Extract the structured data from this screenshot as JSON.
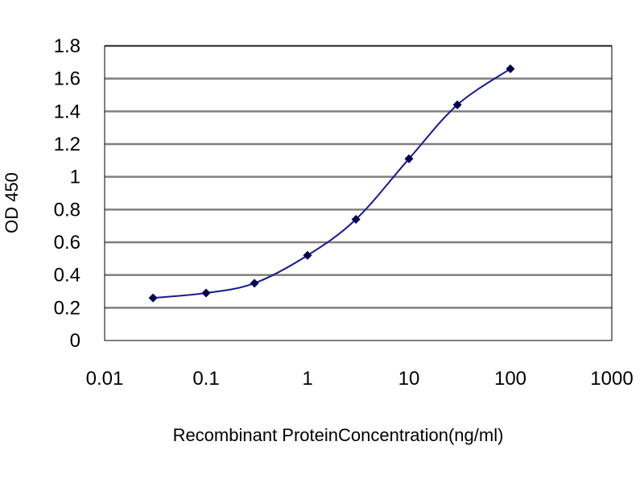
{
  "chart_data": {
    "type": "line",
    "title": "",
    "xlabel": "Recombinant ProteinConcentration(ng/ml)",
    "ylabel": "OD 450",
    "x_scale": "log",
    "xlim": [
      0.01,
      1000
    ],
    "ylim": [
      0,
      1.8
    ],
    "x_ticks": [
      "0.01",
      "0.1",
      "1",
      "10",
      "100",
      "1000"
    ],
    "y_ticks": [
      "0",
      "0.2",
      "0.4",
      "0.6",
      "0.8",
      "1",
      "1.2",
      "1.4",
      "1.6",
      "1.8"
    ],
    "grid": "horizontal",
    "legend": "none",
    "series": [
      {
        "color": "#1a1a8c",
        "x": [
          0.03,
          0.1,
          0.3,
          1,
          3,
          10,
          30,
          100
        ],
        "y": [
          0.26,
          0.29,
          0.35,
          0.52,
          0.74,
          1.11,
          1.44,
          1.66
        ]
      }
    ],
    "colors": {
      "plot_background": "#ffffff",
      "gridline": "#7f7f7f",
      "line": "#1a1a8c",
      "marker": "#000050"
    }
  }
}
